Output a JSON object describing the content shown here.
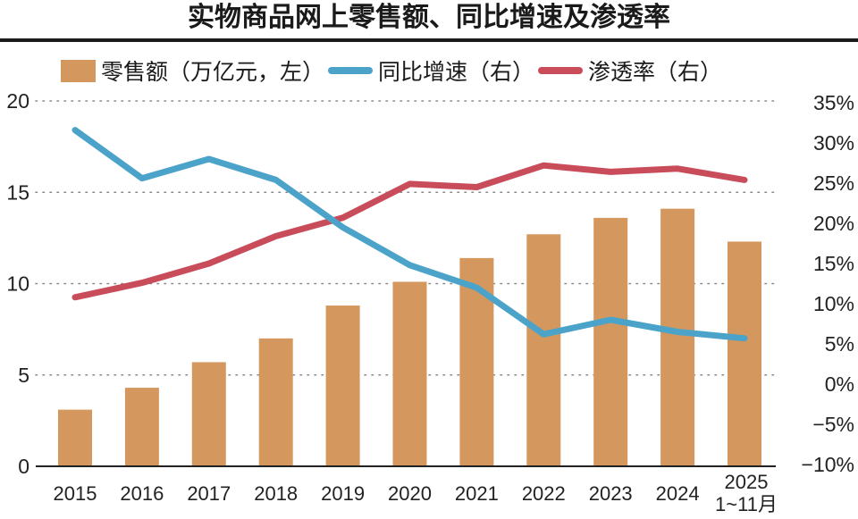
{
  "chart_data": {
    "type": "bar",
    "title": "实物商品网上零售额、同比增速及渗透率",
    "categories": [
      "2015",
      "2016",
      "2017",
      "2018",
      "2019",
      "2020",
      "2021",
      "2022",
      "2023",
      "2024",
      "2025"
    ],
    "category_sublabels": {
      "2025": "1~11月"
    },
    "series": [
      {
        "name": "零售额（万亿元，左）",
        "type": "bar",
        "axis": "left",
        "color": "#D4985E",
        "values": [
          3.1,
          4.3,
          5.7,
          7.0,
          8.8,
          10.1,
          11.4,
          12.7,
          13.6,
          14.1,
          12.3
        ]
      },
      {
        "name": "同比增速（右）",
        "type": "line",
        "axis": "right",
        "color": "#4BA3C9",
        "values": [
          31.6,
          25.6,
          28.0,
          25.4,
          19.5,
          14.8,
          12.0,
          6.2,
          8.0,
          6.5,
          5.7
        ]
      },
      {
        "name": "渗透率（右）",
        "type": "line",
        "axis": "right",
        "color": "#C94C5A",
        "values": [
          10.8,
          12.6,
          15.0,
          18.4,
          20.7,
          24.9,
          24.5,
          27.2,
          26.4,
          26.8,
          25.4
        ]
      }
    ],
    "left_axis": {
      "min": 0,
      "max": 20,
      "ticks": [
        0,
        5,
        10,
        15,
        20
      ],
      "tick_labels": [
        "0",
        "5",
        "10",
        "15",
        "20"
      ]
    },
    "right_axis": {
      "min": -10,
      "max": 35,
      "ticks": [
        -10,
        -5,
        0,
        5,
        10,
        15,
        20,
        25,
        30,
        35
      ],
      "tick_labels": [
        "−10%",
        "−5%",
        "0%",
        "5%",
        "10%",
        "15%",
        "20%",
        "25%",
        "30%",
        "35%"
      ]
    },
    "grid": "dotted horizontal on left-axis ticks",
    "legend_position": "top",
    "xlabel": "",
    "ylabel": ""
  },
  "legend": {
    "bar_label": "零售额（万亿元，左）",
    "growth_label": "同比增速（右）",
    "penetration_label": "渗透率（右）"
  }
}
